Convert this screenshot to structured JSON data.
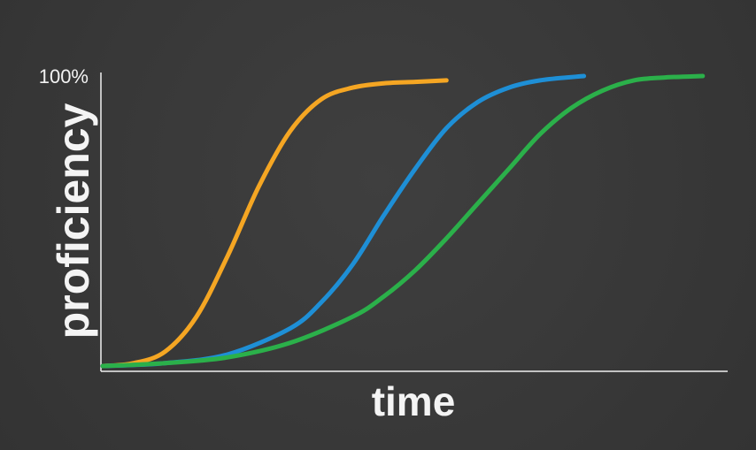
{
  "chart_data": {
    "type": "line",
    "title": "",
    "xlabel": "time",
    "ylabel": "proficiency",
    "y_tick_label": "100%",
    "ylim": [
      0,
      100
    ],
    "xlim": [
      0,
      100
    ],
    "grid": false,
    "legend": "none",
    "series": [
      {
        "color": "#f5a623",
        "x": [
          0,
          5,
          10,
          15,
          20,
          25,
          30,
          35,
          40,
          45,
          50,
          55
        ],
        "y": [
          0,
          1,
          5,
          17,
          38,
          62,
          81,
          92,
          96,
          97.5,
          98,
          98.5
        ]
      },
      {
        "color": "#1e8fd6",
        "x": [
          0,
          10,
          20,
          30,
          35,
          40,
          45,
          50,
          55,
          60,
          65,
          70,
          77
        ],
        "y": [
          0,
          1,
          4,
          13,
          22,
          35,
          52,
          68,
          82,
          91,
          96,
          98.5,
          100
        ]
      },
      {
        "color": "#2bb04a",
        "x": [
          0,
          10,
          20,
          30,
          40,
          45,
          50,
          55,
          60,
          65,
          70,
          75,
          80,
          85,
          90,
          96
        ],
        "y": [
          0,
          1,
          3,
          8,
          17,
          24,
          33,
          44,
          56,
          68,
          80,
          89,
          95,
          98.5,
          99.5,
          100
        ]
      }
    ]
  }
}
